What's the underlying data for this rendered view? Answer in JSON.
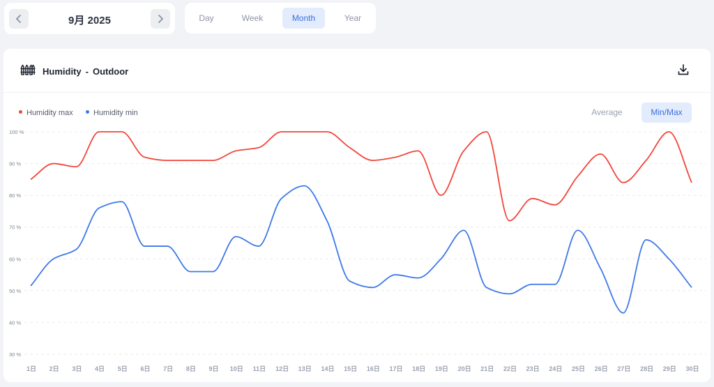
{
  "date_nav": {
    "label": "9月 2025",
    "prev_icon": "chevron-left-icon",
    "next_icon": "chevron-right-icon"
  },
  "period_tabs": [
    {
      "label": "Day",
      "active": false
    },
    {
      "label": "Week",
      "active": false
    },
    {
      "label": "Month",
      "active": true
    },
    {
      "label": "Year",
      "active": false
    }
  ],
  "panel": {
    "title": "Humidity",
    "separator": "-",
    "subtitle": "Outdoor",
    "title_icon": "fence-icon",
    "action_icon": "download-icon"
  },
  "mode_toggle": [
    {
      "label": "Average",
      "active": false
    },
    {
      "label": "Min/Max",
      "active": true
    }
  ],
  "colors": {
    "max": "#f0453a",
    "min": "#3d78e8",
    "accent": "#3b6fe0"
  },
  "chart_data": {
    "type": "line",
    "x": [
      "1日",
      "2日",
      "3日",
      "4日",
      "5日",
      "6日",
      "7日",
      "8日",
      "9日",
      "10日",
      "11日",
      "12日",
      "13日",
      "14日",
      "15日",
      "16日",
      "17日",
      "18日",
      "19日",
      "20日",
      "21日",
      "22日",
      "23日",
      "24日",
      "25日",
      "26日",
      "27日",
      "28日",
      "29日",
      "30日"
    ],
    "series": [
      {
        "name": "Humidity max",
        "color": "#f0453a",
        "values": [
          85,
          90,
          89,
          100,
          100,
          92,
          91,
          91,
          91,
          94,
          95,
          100,
          100,
          100,
          95,
          91,
          92,
          94,
          80,
          94,
          100,
          72,
          79,
          77,
          86,
          93,
          84,
          91,
          100,
          84
        ]
      },
      {
        "name": "Humidity min",
        "color": "#3d78e8",
        "values": [
          51.5,
          60,
          63,
          76,
          78,
          64,
          64,
          56,
          56,
          67,
          64,
          79,
          83,
          72,
          53,
          51,
          55,
          54,
          60,
          69,
          51,
          49,
          52,
          52,
          69,
          57,
          43,
          66,
          60,
          51
        ]
      }
    ],
    "y_ticks": [
      "30 %",
      "40 %",
      "50 %",
      "60 %",
      "70 %",
      "80 %",
      "90 %",
      "100 %"
    ],
    "ylim": [
      30,
      100
    ],
    "grid": true,
    "legend": "top-left"
  }
}
